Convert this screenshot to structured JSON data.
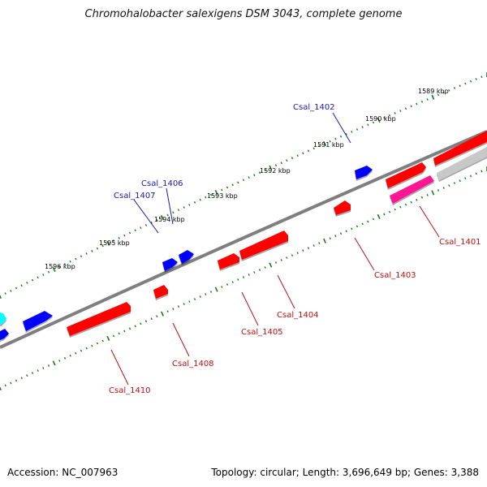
{
  "title": "Chromohalobacter salexigens DSM 3043, complete genome",
  "footer": {
    "accession": "Accession: NC_007963",
    "summary": "Topology: circular; Length: 3,696,649 bp; Genes: 3,388"
  },
  "colors": {
    "forward_gene": "#0000ff",
    "reverse_gene": "#ff0000",
    "rna_gene": "#ff1493",
    "other_gene": "#00ffff",
    "pseudo_gene": "#c8c8c8",
    "backbone": "#7f7f7f",
    "ticks": "#1a7a1a",
    "forward_label": "#1a1aaa",
    "reverse_label": "#bb1111"
  },
  "scale_ticks": [
    {
      "label": "1589 kbp",
      "kbp": 1589
    },
    {
      "label": "1590 kbp",
      "kbp": 1590
    },
    {
      "label": "1591 kbp",
      "kbp": 1591
    },
    {
      "label": "1592 kbp",
      "kbp": 1592
    },
    {
      "label": "1593 kbp",
      "kbp": 1593
    },
    {
      "label": "1594 kbp",
      "kbp": 1594
    },
    {
      "label": "1595 kbp",
      "kbp": 1595
    },
    {
      "label": "1596 kbp",
      "kbp": 1596
    }
  ],
  "gene_labels": [
    {
      "name": "Csal_1402",
      "strand": "forward"
    },
    {
      "name": "Csal_1406",
      "strand": "forward"
    },
    {
      "name": "Csal_1407",
      "strand": "forward"
    },
    {
      "name": "Csal_1401",
      "strand": "reverse"
    },
    {
      "name": "Csal_1403",
      "strand": "reverse"
    },
    {
      "name": "Csal_1404",
      "strand": "reverse"
    },
    {
      "name": "Csal_1405",
      "strand": "reverse"
    },
    {
      "name": "Csal_1408",
      "strand": "reverse"
    },
    {
      "name": "Csal_1410",
      "strand": "reverse"
    }
  ]
}
